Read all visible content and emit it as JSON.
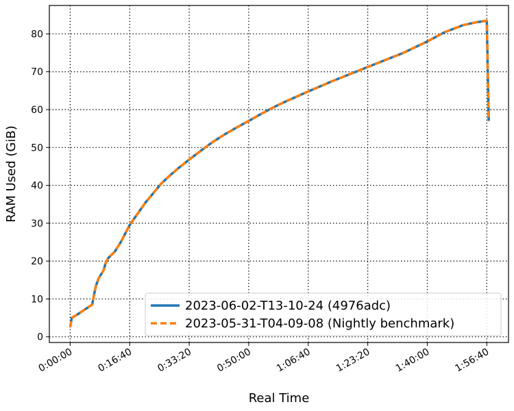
{
  "chart_data": {
    "type": "line",
    "title": "",
    "xlabel": "Real Time",
    "ylabel": "RAM Used (GiB)",
    "x_unit": "elapsed time (h:mm:ss)",
    "xlim": [
      "-0:05:50",
      "2:02:45"
    ],
    "ylim": [
      -1.5,
      87.5
    ],
    "x_ticks": [
      "0:00:00",
      "0:16:40",
      "0:33:20",
      "0:50:00",
      "1:06:40",
      "1:23:20",
      "1:40:00",
      "1:56:40"
    ],
    "y_ticks": [
      0,
      10,
      20,
      30,
      40,
      50,
      60,
      70,
      80
    ],
    "grid": true,
    "legend_position": "lower-right",
    "series": [
      {
        "name": "2023-06-02-T13-10-24 (4976adc)",
        "color": "#1f77b4",
        "style": "solid",
        "x": [
          "0:00:00",
          "0:00:27",
          "0:02:12",
          "0:06:10",
          "0:06:40",
          "0:07:13",
          "0:08:00",
          "0:09:20",
          "0:09:57",
          "0:10:40",
          "0:12:30",
          "0:14:10",
          "0:16:40",
          "0:18:53",
          "0:21:07",
          "0:23:20",
          "0:25:33",
          "0:27:47",
          "0:30:00",
          "0:33:20",
          "0:36:40",
          "0:40:00",
          "0:43:20",
          "0:46:40",
          "0:50:00",
          "0:53:20",
          "0:56:40",
          "1:00:00",
          "1:06:40",
          "1:13:20",
          "1:20:00",
          "1:26:40",
          "1:33:20",
          "1:40:00",
          "1:45:00",
          "1:50:00",
          "1:53:20",
          "1:56:40",
          "1:57:13"
        ],
        "y": [
          2.5,
          5.0,
          6.0,
          8.5,
          11.0,
          13.5,
          15.5,
          17.5,
          19.5,
          20.8,
          22.5,
          25.0,
          29.5,
          32.5,
          35.5,
          38.0,
          40.5,
          42.5,
          44.3,
          46.8,
          49.2,
          51.5,
          53.5,
          55.3,
          57.0,
          58.8,
          60.5,
          62.0,
          64.8,
          67.5,
          70.0,
          72.5,
          75.0,
          78.0,
          80.5,
          82.3,
          83.0,
          83.5,
          57.0
        ]
      },
      {
        "name": "2023-05-31-T04-09-08 (Nightly benchmark)",
        "color": "#ff7f0e",
        "style": "dashed",
        "x": [
          "0:00:00",
          "0:00:27",
          "0:02:12",
          "0:06:10",
          "0:06:40",
          "0:07:13",
          "0:08:00",
          "0:09:20",
          "0:09:57",
          "0:10:40",
          "0:12:30",
          "0:14:10",
          "0:16:40",
          "0:18:53",
          "0:21:07",
          "0:23:20",
          "0:25:33",
          "0:27:47",
          "0:30:00",
          "0:33:20",
          "0:36:40",
          "0:40:00",
          "0:43:20",
          "0:46:40",
          "0:50:00",
          "0:53:20",
          "0:56:40",
          "1:00:00",
          "1:06:40",
          "1:13:20",
          "1:20:00",
          "1:26:40",
          "1:33:20",
          "1:40:00",
          "1:45:00",
          "1:50:00",
          "1:53:20",
          "1:56:40",
          "1:57:13"
        ],
        "y": [
          2.5,
          5.0,
          6.0,
          8.5,
          11.0,
          13.5,
          15.5,
          17.5,
          19.5,
          20.8,
          22.5,
          25.0,
          29.5,
          32.5,
          35.5,
          38.0,
          40.5,
          42.5,
          44.3,
          46.8,
          49.2,
          51.5,
          53.5,
          55.3,
          57.0,
          58.8,
          60.5,
          62.0,
          64.8,
          67.5,
          70.0,
          72.5,
          75.0,
          78.0,
          80.5,
          82.3,
          83.0,
          83.5,
          57.0
        ]
      }
    ]
  }
}
